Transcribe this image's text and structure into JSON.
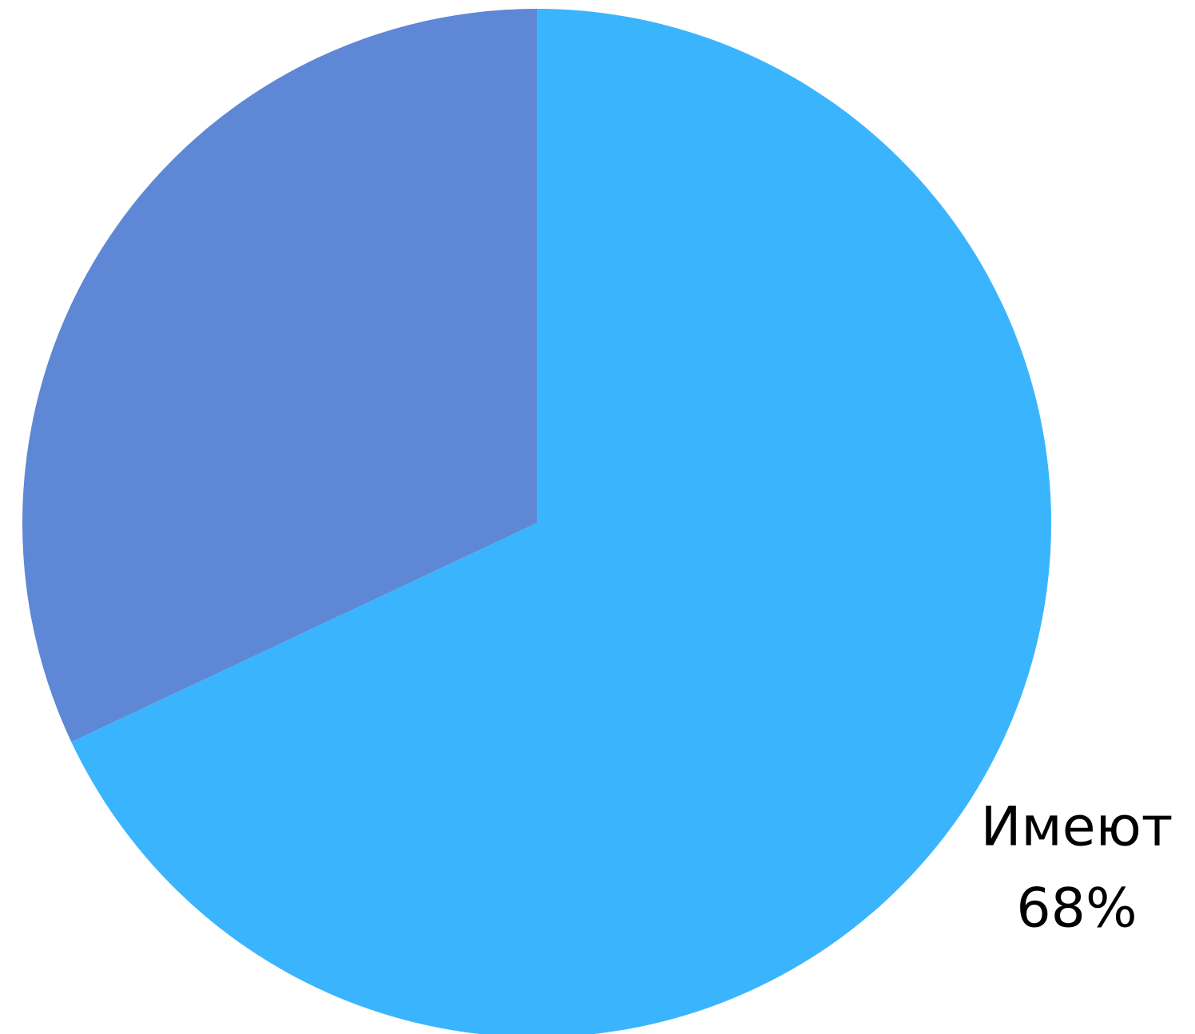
{
  "chart_data": {
    "type": "pie",
    "categories": [
      "Имеют",
      null
    ],
    "values": [
      68,
      32
    ],
    "value_labels": [
      "68%",
      null
    ],
    "colors": [
      "#3ab5fd",
      "#5e88d5"
    ],
    "start_angle": 0,
    "direction": "clockwise"
  }
}
